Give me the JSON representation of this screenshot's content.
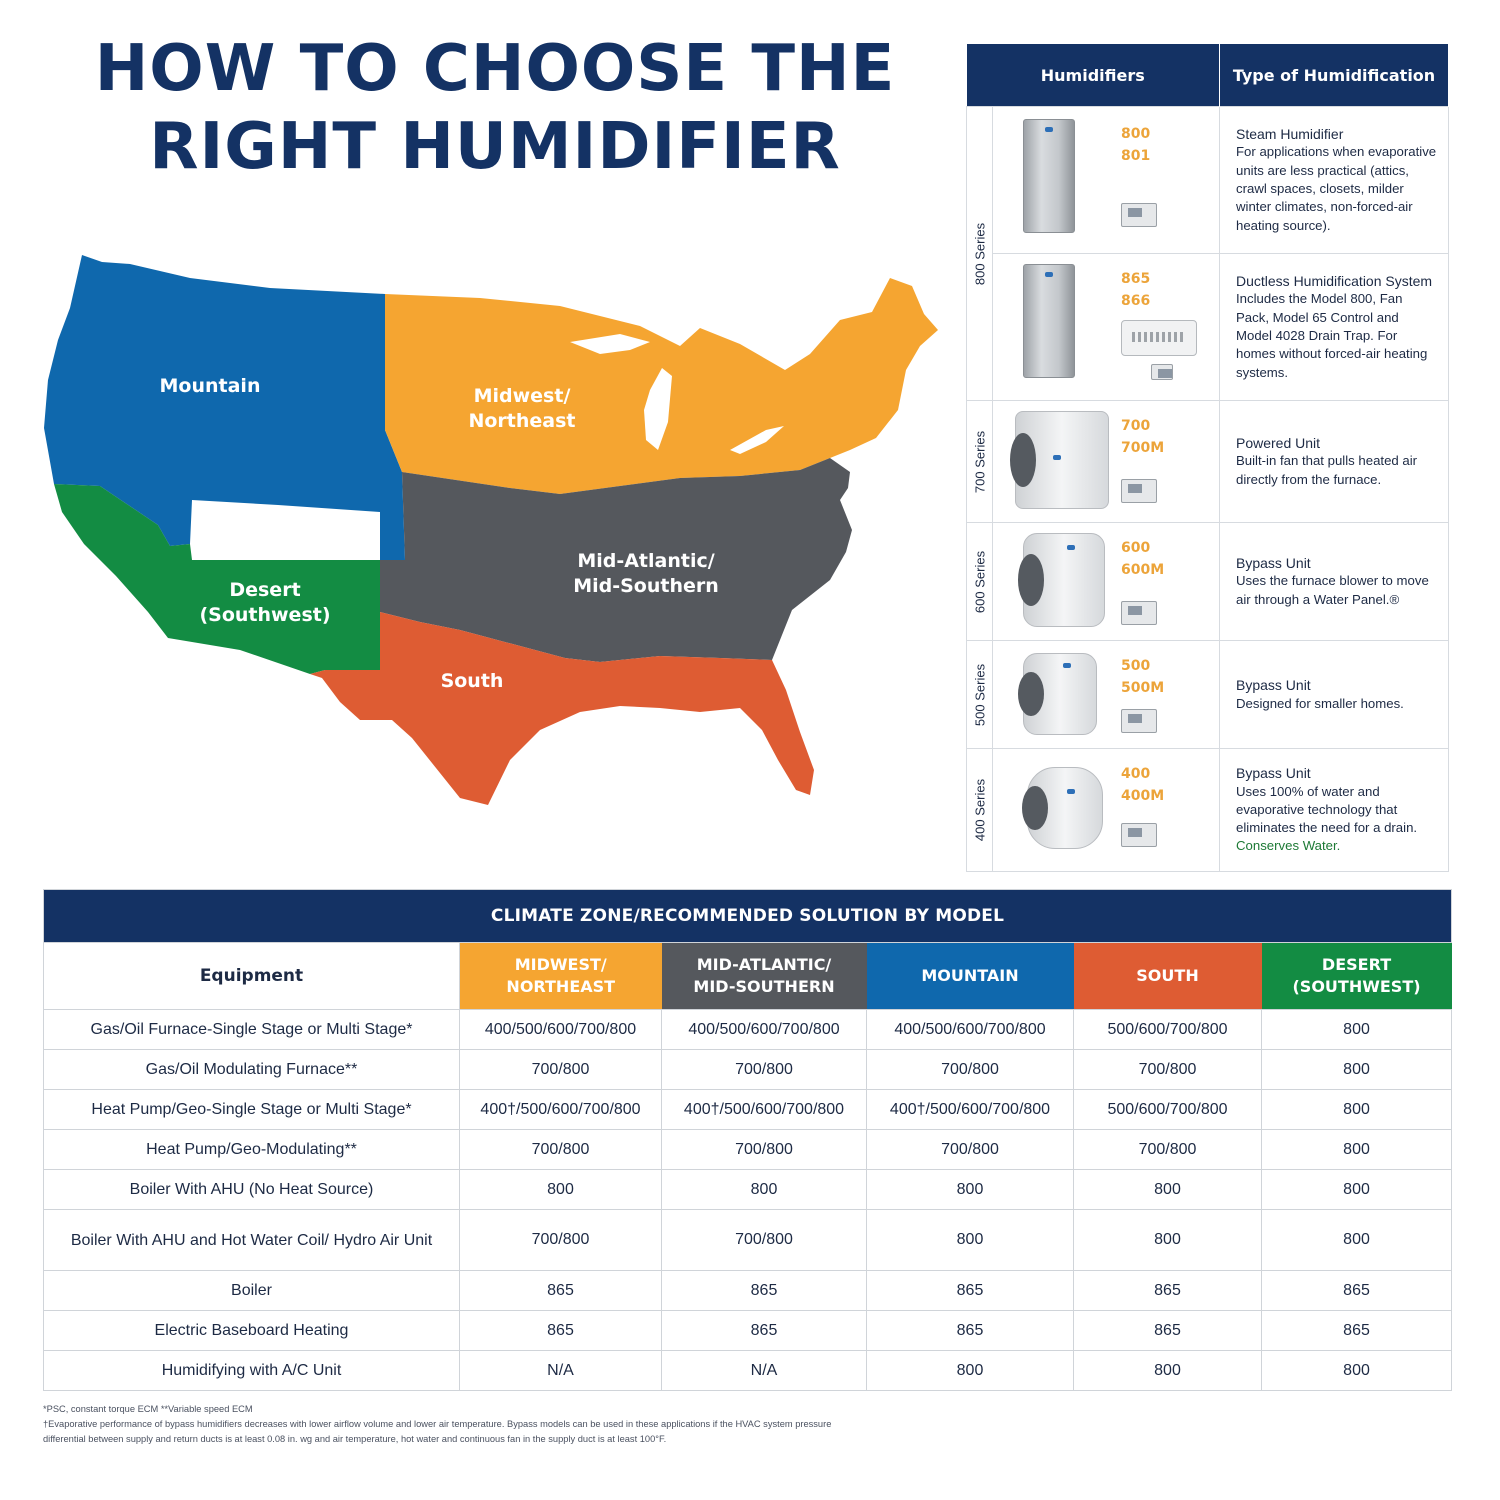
{
  "title": {
    "line1": "HOW TO CHOOSE THE",
    "line2": "RIGHT HUMIDIFIER"
  },
  "map": {
    "regions": [
      {
        "name": "Mountain",
        "color": "#0f68ad"
      },
      {
        "name": "Midwest/ Northeast",
        "color": "#f5a531"
      },
      {
        "name": "Mid-Atlantic/ Mid-Southern",
        "color": "#55585d"
      },
      {
        "name": "Desert (Southwest)",
        "color": "#138c43"
      },
      {
        "name": "South",
        "color": "#de5c33"
      }
    ],
    "labels": {
      "mountain": "Mountain",
      "midwest_1": "Midwest/",
      "midwest_2": "Northeast",
      "midatl_1": "Mid-Atlantic/",
      "midatl_2": "Mid-Southern",
      "desert_1": "Desert",
      "desert_2": "(Southwest)",
      "south": "South"
    }
  },
  "humidifier_table": {
    "headers": [
      "Humidifiers",
      "Type of Humidification"
    ],
    "rows": [
      {
        "series": "800 Series",
        "models": [
          "800",
          "801"
        ],
        "type": "Steam Humidifier",
        "description": "For applications when evaporative units are less practical (attics, crawl spaces, closets, milder winter climates, non-forced-air heating source)."
      },
      {
        "series": "",
        "models": [
          "865",
          "866"
        ],
        "type": "Ductless Humidification System",
        "description": "Includes the Model 800, Fan Pack, Model 65 Control and Model 4028 Drain Trap. For homes without forced-air heating systems."
      },
      {
        "series": "700 Series",
        "models": [
          "700",
          "700M"
        ],
        "type": "Powered Unit",
        "description": "Built-in fan that pulls heated air directly from the furnace."
      },
      {
        "series": "600 Series",
        "models": [
          "600",
          "600M"
        ],
        "type": "Bypass Unit",
        "description": "Uses the furnace blower to move air through a Water Panel.®"
      },
      {
        "series": "500 Series",
        "models": [
          "500",
          "500M"
        ],
        "type": "Bypass Unit",
        "description": "Designed for smaller homes."
      },
      {
        "series": "400 Series",
        "models": [
          "400",
          "400M"
        ],
        "type": "Bypass Unit",
        "description": "Uses 100% of water and evaporative technology that eliminates the need for a drain.",
        "highlight": "Conserves Water."
      }
    ]
  },
  "climate_table": {
    "caption": "CLIMATE ZONE/RECOMMENDED SOLUTION BY MODEL",
    "equipment_header": "Equipment",
    "zones": [
      {
        "line1": "MIDWEST/",
        "line2": "NORTHEAST",
        "color": "#f5a531"
      },
      {
        "line1": "MID-ATLANTIC/",
        "line2": "MID-SOUTHERN",
        "color": "#55585d"
      },
      {
        "line1": "MOUNTAIN",
        "line2": "",
        "color": "#0f68ad"
      },
      {
        "line1": "SOUTH",
        "line2": "",
        "color": "#de5c33"
      },
      {
        "line1": "DESERT",
        "line2": "(SOUTHWEST)",
        "color": "#138c43"
      }
    ],
    "rows": [
      {
        "equipment": "Gas/Oil Furnace-Single Stage or Multi Stage*",
        "values": [
          "400/500/600/700/800",
          "400/500/600/700/800",
          "400/500/600/700/800",
          "500/600/700/800",
          "800"
        ]
      },
      {
        "equipment": "Gas/Oil Modulating Furnace**",
        "values": [
          "700/800",
          "700/800",
          "700/800",
          "700/800",
          "800"
        ]
      },
      {
        "equipment": "Heat Pump/Geo-Single Stage or Multi Stage*",
        "values": [
          "400†/500/600/700/800",
          "400†/500/600/700/800",
          "400†/500/600/700/800",
          "500/600/700/800",
          "800"
        ]
      },
      {
        "equipment": "Heat Pump/Geo-Modulating**",
        "values": [
          "700/800",
          "700/800",
          "700/800",
          "700/800",
          "800"
        ]
      },
      {
        "equipment": "Boiler With AHU (No Heat Source)",
        "values": [
          "800",
          "800",
          "800",
          "800",
          "800"
        ]
      },
      {
        "equipment": "Boiler With AHU and Hot Water Coil/ Hydro Air Unit",
        "values": [
          "700/800",
          "700/800",
          "800",
          "800",
          "800"
        ]
      },
      {
        "equipment": "Boiler",
        "values": [
          "865",
          "865",
          "865",
          "865",
          "865"
        ]
      },
      {
        "equipment": "Electric Baseboard Heating",
        "values": [
          "865",
          "865",
          "865",
          "865",
          "865"
        ]
      },
      {
        "equipment": "Humidifying with A/C Unit",
        "values": [
          "N/A",
          "N/A",
          "800",
          "800",
          "800"
        ]
      }
    ]
  },
  "footnotes": {
    "line1": "*PSC, constant torque ECM    **Variable speed ECM",
    "line2": "†Evaporative performance of bypass humidifiers decreases with lower airflow volume and lower air temperature. Bypass models can be used in these applications if the HVAC system pressure differential between supply and return ducts is at least 0.08 in. wg and air temperature, hot water and continuous fan in the supply duct is at least 100°F."
  }
}
